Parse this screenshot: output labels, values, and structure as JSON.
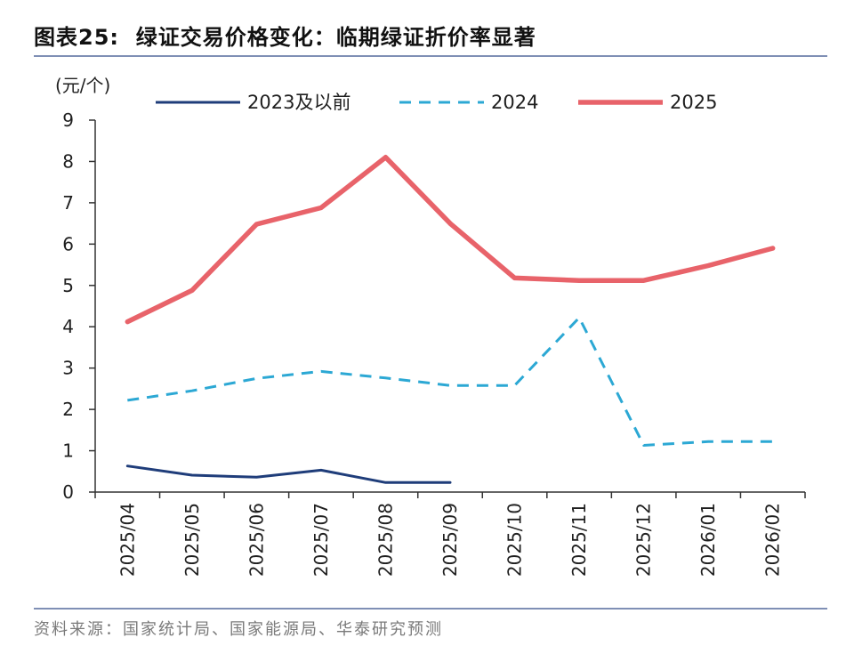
{
  "header": {
    "title_label": "图表25:",
    "title_text": "绿证交易价格变化：临期绿证折价率显著"
  },
  "footer": {
    "source": "资料来源：国家统计局、国家能源局、华泰研究预测"
  },
  "colors": {
    "series_2023": "#1f3d7a",
    "series_2024": "#2ca8d4",
    "series_2025": "#e8636a",
    "rule": "#7f8fb5",
    "axis": "#333333"
  },
  "chart_data": {
    "type": "line",
    "unit_label": "(元/个)",
    "categories": [
      "2025/04",
      "2025/05",
      "2025/06",
      "2025/07",
      "2025/08",
      "2025/09",
      "2025/10",
      "2025/11",
      "2025/12",
      "2026/01",
      "2026/02"
    ],
    "ylim": [
      0,
      9
    ],
    "yticks": [
      0,
      1,
      2,
      3,
      4,
      5,
      6,
      7,
      8,
      9
    ],
    "grid": false,
    "legend_position": "top",
    "series": [
      {
        "name": "2023及以前",
        "style": "solid-thin",
        "color": "#1f3d7a",
        "values": [
          0.63,
          0.41,
          0.36,
          0.53,
          0.23,
          0.23,
          null,
          null,
          null,
          null,
          null
        ]
      },
      {
        "name": "2024",
        "style": "dashed",
        "color": "#2ca8d4",
        "values": [
          2.22,
          2.45,
          2.75,
          2.92,
          2.76,
          2.58,
          2.58,
          4.22,
          1.13,
          1.22,
          1.22
        ]
      },
      {
        "name": "2025",
        "style": "solid-thick",
        "color": "#e8636a",
        "values": [
          4.12,
          4.88,
          6.48,
          6.88,
          8.1,
          6.5,
          5.18,
          5.12,
          5.12,
          5.48,
          5.9
        ]
      }
    ]
  }
}
